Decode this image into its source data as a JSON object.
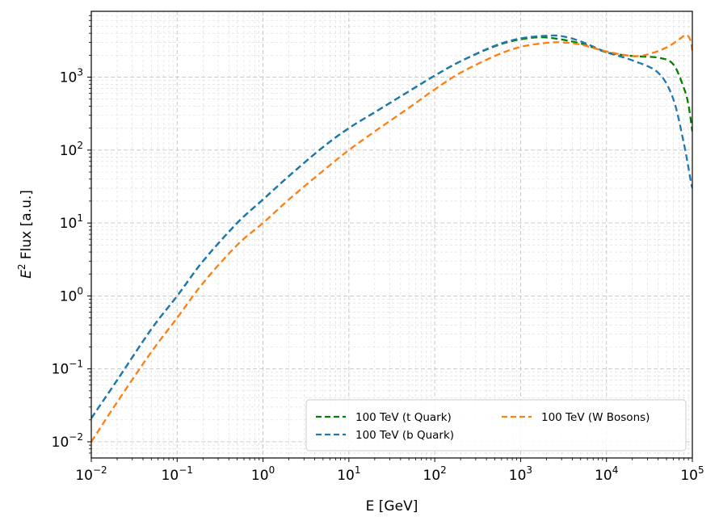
{
  "chart_data": {
    "type": "line",
    "title": "",
    "xlabel": "E [GeV]",
    "ylabel_base": "E",
    "ylabel_sup": "2",
    "ylabel_rest": " Flux [a.u.]",
    "xscale": "log",
    "yscale": "log",
    "xlim": [
      0.01,
      100000
    ],
    "ylim": [
      0.006,
      8000
    ],
    "grid": true,
    "legend_position": "lower-right",
    "x_ticks": [
      {
        "base": "10",
        "exp": "−2",
        "value": 0.01
      },
      {
        "base": "10",
        "exp": "−1",
        "value": 0.1
      },
      {
        "base": "10",
        "exp": "0",
        "value": 1
      },
      {
        "base": "10",
        "exp": "1",
        "value": 10
      },
      {
        "base": "10",
        "exp": "2",
        "value": 100
      },
      {
        "base": "10",
        "exp": "3",
        "value": 1000
      },
      {
        "base": "10",
        "exp": "4",
        "value": 10000
      },
      {
        "base": "10",
        "exp": "5",
        "value": 100000
      }
    ],
    "y_ticks": [
      {
        "base": "10",
        "exp": "−2",
        "value": 0.01
      },
      {
        "base": "10",
        "exp": "−1",
        "value": 0.1
      },
      {
        "base": "10",
        "exp": "0",
        "value": 1
      },
      {
        "base": "10",
        "exp": "1",
        "value": 10
      },
      {
        "base": "10",
        "exp": "2",
        "value": 100
      },
      {
        "base": "10",
        "exp": "3",
        "value": 1000
      }
    ],
    "series": [
      {
        "name": "100 TeV (t Quark)",
        "color": "#008000",
        "x": [
          0.01,
          0.02,
          0.05,
          0.1,
          0.2,
          0.5,
          1,
          2,
          5,
          10,
          20,
          50,
          100,
          200,
          500,
          1000,
          2000,
          5000,
          10000,
          20000,
          40000,
          60000,
          80000,
          90000,
          100000
        ],
        "y": [
          0.021,
          0.07,
          0.35,
          1.0,
          3.0,
          10,
          21,
          44,
          110,
          200,
          330,
          640,
          1050,
          1650,
          2650,
          3300,
          3500,
          2900,
          2200,
          1950,
          1850,
          1500,
          700,
          420,
          180
        ]
      },
      {
        "name": "100 TeV (b Quark)",
        "color": "#1f77b4",
        "x": [
          0.01,
          0.02,
          0.05,
          0.1,
          0.2,
          0.5,
          1,
          2,
          5,
          10,
          20,
          50,
          100,
          200,
          500,
          1000,
          2000,
          3000,
          5000,
          10000,
          20000,
          40000,
          60000,
          80000,
          95000,
          100000
        ],
        "y": [
          0.021,
          0.07,
          0.35,
          1.0,
          3.0,
          10,
          21,
          44,
          110,
          200,
          330,
          640,
          1050,
          1650,
          2700,
          3400,
          3700,
          3650,
          3100,
          2200,
          1700,
          1150,
          500,
          120,
          40,
          30
        ]
      },
      {
        "name": "100 TeV (W Bosons)",
        "color": "#ff7f0e",
        "x": [
          0.01,
          0.02,
          0.05,
          0.1,
          0.2,
          0.5,
          1,
          2,
          5,
          10,
          20,
          50,
          100,
          200,
          500,
          1000,
          2000,
          3000,
          5000,
          10000,
          20000,
          30000,
          50000,
          70000,
          85000,
          95000,
          100000
        ],
        "y": [
          0.01,
          0.035,
          0.17,
          0.5,
          1.5,
          5,
          10,
          21,
          52,
          100,
          180,
          380,
          680,
          1150,
          1950,
          2600,
          2950,
          3000,
          2800,
          2250,
          1950,
          2050,
          2550,
          3300,
          3800,
          3200,
          2300
        ]
      }
    ]
  }
}
